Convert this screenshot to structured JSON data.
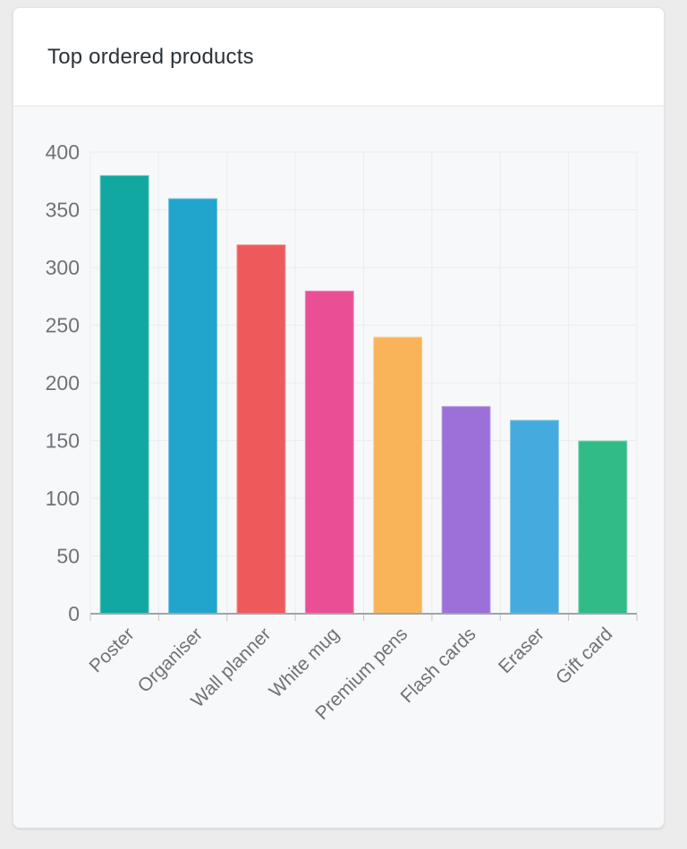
{
  "card": {
    "title": "Top ordered products",
    "title_color": "#2c3338",
    "header_bg": "#ffffff",
    "body_bg": "#f7f8f9",
    "divider_color": "#e2e4e7"
  },
  "chart_data": {
    "type": "bar",
    "title": "Top ordered products",
    "categories": [
      "Poster",
      "Organiser",
      "Wall planner",
      "White mug",
      "Premium pens",
      "Flash cards",
      "Eraser",
      "Gift card"
    ],
    "values": [
      380,
      360,
      320,
      280,
      240,
      180,
      168,
      150
    ],
    "bar_colors": [
      "#11a8a1",
      "#22a5cd",
      "#ee5a5c",
      "#ea4f96",
      "#f9b45a",
      "#9c70d9",
      "#45abdf",
      "#31bb87"
    ],
    "xlabel": "",
    "ylabel": "",
    "ylim": [
      0,
      400
    ],
    "y_ticks": [
      0,
      50,
      100,
      150,
      200,
      250,
      300,
      350,
      400
    ],
    "grid": true,
    "legend_position": "none",
    "x_label_rotation": -45,
    "colors": {
      "axis_line": "#a0a5aa",
      "grid_line": "#eaecee",
      "tick_mark": "#c2c6ca",
      "tick_text": "#6e7378"
    }
  }
}
